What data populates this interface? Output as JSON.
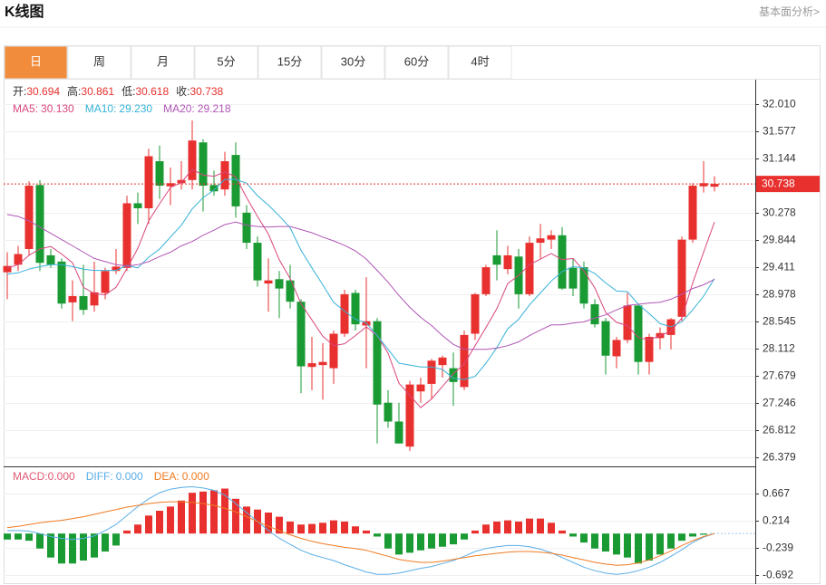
{
  "header": {
    "title": "K线图",
    "link": "基本面分析>"
  },
  "tabs": {
    "items": [
      "日",
      "周",
      "月",
      "5分",
      "15分",
      "30分",
      "60分",
      "4时"
    ],
    "active": 0,
    "active_color": "#f08c3c"
  },
  "chart_data": [
    {
      "type": "candlestick",
      "ohlc_labels": [
        "开:",
        "高:",
        "低:",
        "收:"
      ],
      "open": [
        29.33,
        29.45,
        29.7,
        30.72,
        29.6,
        29.5,
        28.85,
        28.95,
        28.8,
        29.0,
        29.35,
        29.4,
        30.43,
        30.35,
        31.1,
        30.7,
        30.75,
        30.8,
        31.4,
        30.72,
        30.65,
        31.2,
        30.28,
        29.8,
        29.15,
        29.22,
        29.2,
        28.86,
        27.82,
        27.85,
        27.8,
        28.35,
        29.0,
        28.48,
        28.55,
        27.25,
        26.95,
        26.55,
        27.43,
        27.55,
        27.85,
        27.8,
        27.5,
        28.35,
        28.98,
        29.6,
        29.38,
        29.58,
        28.98,
        29.8,
        29.85,
        29.92,
        29.4,
        29.41,
        28.82,
        28.55,
        27.99,
        28.25,
        28.8,
        27.9,
        28.28,
        28.33,
        28.62,
        29.85,
        30.7,
        30.694
      ],
      "high": [
        29.65,
        29.75,
        30.78,
        30.8,
        29.7,
        29.55,
        29.2,
        29.45,
        29.5,
        29.4,
        29.7,
        30.55,
        30.6,
        31.3,
        31.35,
        31.0,
        31.1,
        31.75,
        31.45,
        30.95,
        31.25,
        31.4,
        30.4,
        29.9,
        29.55,
        29.35,
        29.45,
        28.9,
        28.3,
        28.2,
        28.4,
        29.05,
        29.05,
        29.25,
        28.6,
        27.45,
        27.25,
        27.6,
        27.65,
        27.95,
        28.0,
        28.05,
        28.4,
        29.0,
        29.45,
        30.0,
        29.75,
        29.7,
        29.9,
        30.1,
        30.0,
        30.05,
        29.55,
        29.5,
        28.9,
        28.6,
        28.3,
        29.0,
        28.8,
        28.35,
        28.45,
        28.6,
        29.9,
        30.75,
        31.1,
        30.861
      ],
      "low": [
        28.9,
        29.35,
        29.6,
        29.35,
        29.4,
        28.75,
        28.55,
        28.65,
        28.7,
        28.9,
        29.3,
        29.35,
        30.1,
        30.1,
        30.5,
        30.4,
        30.65,
        30.65,
        30.3,
        30.55,
        30.55,
        30.2,
        29.7,
        29.1,
        28.7,
        28.6,
        28.75,
        27.4,
        27.45,
        27.3,
        27.55,
        28.3,
        28.4,
        27.8,
        26.6,
        26.85,
        26.6,
        26.48,
        27.25,
        27.3,
        27.65,
        27.2,
        27.45,
        28.25,
        28.95,
        29.2,
        29.3,
        28.75,
        28.95,
        29.55,
        29.7,
        29.05,
        28.95,
        28.75,
        28.45,
        27.7,
        27.8,
        28.2,
        27.7,
        27.7,
        28.1,
        28.1,
        28.55,
        29.8,
        30.6,
        30.618
      ],
      "close": [
        29.43,
        29.62,
        30.71,
        29.48,
        29.45,
        28.83,
        28.95,
        28.73,
        29.01,
        29.35,
        29.42,
        30.43,
        30.35,
        31.18,
        30.71,
        30.75,
        30.8,
        31.43,
        30.71,
        30.62,
        31.1,
        30.38,
        29.8,
        29.2,
        29.2,
        29.07,
        28.86,
        27.83,
        27.88,
        27.9,
        28.35,
        28.98,
        28.5,
        28.55,
        27.22,
        26.95,
        26.6,
        27.54,
        27.54,
        27.92,
        27.97,
        27.58,
        28.33,
        28.98,
        29.41,
        29.45,
        29.6,
        28.98,
        29.8,
        29.87,
        29.92,
        29.07,
        29.07,
        28.83,
        28.5,
        28.0,
        28.25,
        28.8,
        27.9,
        28.3,
        28.36,
        28.58,
        29.85,
        30.71,
        30.75,
        30.738
      ],
      "up_color": "#e8312f",
      "down_color": "#1a9a33",
      "ylim": [
        26.235,
        32.4
      ],
      "yticks": [
        {
          "value": 32.01,
          "label": "32.010"
        },
        31.577,
        31.144,
        30.278,
        29.844,
        29.411,
        28.978,
        28.545,
        28.112,
        27.679,
        27.246,
        26.812,
        26.379
      ],
      "grid": true,
      "series": [
        {
          "name": "MA5:",
          "color": "#d9457e",
          "value_label": "30.130",
          "values": [
            29.4,
            29.45,
            29.6,
            29.7,
            29.74,
            29.62,
            29.48,
            29.09,
            28.99,
            28.97,
            29.09,
            29.39,
            29.71,
            30.15,
            30.42,
            30.68,
            30.76,
            30.97,
            30.88,
            30.86,
            30.93,
            30.85,
            30.52,
            30.22,
            29.94,
            29.53,
            29.23,
            28.83,
            28.57,
            28.31,
            28.16,
            28.19,
            28.32,
            28.46,
            28.32,
            28.04,
            27.56,
            27.37,
            27.17,
            27.31,
            27.51,
            27.71,
            27.87,
            28.16,
            28.45,
            28.75,
            29.15,
            29.28,
            29.45,
            29.54,
            29.63,
            29.53,
            29.55,
            29.35,
            29.08,
            28.69,
            28.53,
            28.48,
            28.29,
            28.25,
            28.32,
            28.39,
            28.6,
            29.16,
            29.65,
            30.13
          ]
        },
        {
          "name": "MA10:",
          "color": "#36b2d8",
          "value_label": "29.230",
          "values": [
            29.3,
            29.32,
            29.38,
            29.42,
            29.45,
            29.45,
            29.42,
            29.38,
            29.36,
            29.36,
            29.36,
            29.44,
            29.4,
            29.57,
            29.7,
            29.89,
            30.08,
            30.34,
            30.52,
            30.64,
            30.81,
            30.81,
            30.75,
            30.55,
            30.4,
            30.23,
            30.04,
            29.68,
            29.4,
            29.13,
            28.85,
            28.71,
            28.58,
            28.52,
            28.32,
            28.1,
            27.88,
            27.85,
            27.82,
            27.82,
            27.78,
            27.64,
            27.62,
            27.67,
            27.88,
            28.13,
            28.43,
            28.58,
            28.81,
            29.0,
            29.19,
            29.34,
            29.42,
            29.4,
            29.31,
            29.16,
            29.03,
            29.02,
            28.82,
            28.67,
            28.51,
            28.46,
            28.54,
            28.73,
            28.95,
            29.23
          ]
        },
        {
          "name": "MA20:",
          "color": "#b055b5",
          "value_label": "29.218",
          "values": [
            30.25,
            30.22,
            30.15,
            30.05,
            29.95,
            29.85,
            29.75,
            29.65,
            29.55,
            29.5,
            29.45,
            29.43,
            29.45,
            29.5,
            29.58,
            29.65,
            29.75,
            29.82,
            29.92,
            30.0,
            30.09,
            30.13,
            30.08,
            30.06,
            30.05,
            30.06,
            30.06,
            30.01,
            29.96,
            29.89,
            29.83,
            29.76,
            29.67,
            29.54,
            29.36,
            29.17,
            28.96,
            28.77,
            28.61,
            28.48,
            28.32,
            28.18,
            28.1,
            28.1,
            28.1,
            28.12,
            28.16,
            28.22,
            28.32,
            28.41,
            28.49,
            28.49,
            28.52,
            28.54,
            28.6,
            28.65,
            28.73,
            28.8,
            28.82,
            28.84,
            28.85,
            28.9,
            28.98,
            29.07,
            29.13,
            29.218
          ]
        }
      ]
    },
    {
      "type": "macd",
      "name": "MACD:",
      "value_label": "0.000",
      "color": "#e05a72",
      "up_color": "#e8312f",
      "down_color": "#1a9a33",
      "values": [
        -0.1,
        -0.1,
        -0.12,
        -0.25,
        -0.4,
        -0.5,
        -0.5,
        -0.45,
        -0.4,
        -0.3,
        -0.2,
        0.05,
        0.15,
        0.3,
        0.38,
        0.45,
        0.55,
        0.68,
        0.7,
        0.72,
        0.75,
        0.58,
        0.45,
        0.4,
        0.35,
        0.28,
        0.2,
        0.15,
        0.16,
        0.18,
        0.22,
        0.2,
        0.12,
        0.05,
        -0.05,
        -0.25,
        -0.35,
        -0.32,
        -0.28,
        -0.25,
        -0.22,
        -0.18,
        -0.1,
        0.05,
        0.15,
        0.2,
        0.22,
        0.2,
        0.25,
        0.25,
        0.18,
        0.05,
        -0.05,
        -0.15,
        -0.25,
        -0.3,
        -0.35,
        -0.4,
        -0.5,
        -0.45,
        -0.35,
        -0.25,
        -0.12,
        -0.05,
        -0.02,
        0
      ],
      "ylim": [
        -0.843,
        1.09
      ],
      "yticks": [
        0.667,
        0.214,
        -0.239,
        -0.692
      ],
      "series": [
        {
          "name": "DIFF:",
          "color": "#5aaee8",
          "value_label": "0.000",
          "values": [
            0.05,
            0.05,
            0.04,
            0.0,
            -0.05,
            -0.08,
            -0.1,
            -0.08,
            -0.04,
            0.05,
            0.15,
            0.3,
            0.45,
            0.58,
            0.68,
            0.74,
            0.77,
            0.78,
            0.76,
            0.72,
            0.64,
            0.5,
            0.35,
            0.2,
            0.05,
            -0.08,
            -0.18,
            -0.28,
            -0.35,
            -0.4,
            -0.45,
            -0.52,
            -0.58,
            -0.64,
            -0.68,
            -0.68,
            -0.66,
            -0.62,
            -0.58,
            -0.55,
            -0.5,
            -0.45,
            -0.38,
            -0.3,
            -0.25,
            -0.22,
            -0.2,
            -0.2,
            -0.22,
            -0.26,
            -0.32,
            -0.4,
            -0.48,
            -0.56,
            -0.62,
            -0.66,
            -0.68,
            -0.66,
            -0.62,
            -0.56,
            -0.48,
            -0.38,
            -0.27,
            -0.15,
            -0.06,
            0
          ]
        },
        {
          "name": "DEA:",
          "color": "#f07b22",
          "value_label": "0.000",
          "values": [
            0.1,
            0.12,
            0.15,
            0.18,
            0.2,
            0.22,
            0.25,
            0.28,
            0.32,
            0.36,
            0.4,
            0.44,
            0.47,
            0.5,
            0.52,
            0.53,
            0.53,
            0.52,
            0.5,
            0.47,
            0.42,
            0.36,
            0.28,
            0.2,
            0.12,
            0.05,
            -0.02,
            -0.08,
            -0.13,
            -0.17,
            -0.2,
            -0.23,
            -0.25,
            -0.28,
            -0.33,
            -0.38,
            -0.43,
            -0.46,
            -0.48,
            -0.48,
            -0.46,
            -0.43,
            -0.4,
            -0.37,
            -0.35,
            -0.33,
            -0.31,
            -0.3,
            -0.3,
            -0.31,
            -0.33,
            -0.36,
            -0.4,
            -0.44,
            -0.48,
            -0.51,
            -0.53,
            -0.52,
            -0.49,
            -0.44,
            -0.37,
            -0.29,
            -0.2,
            -0.12,
            -0.05,
            0
          ]
        }
      ]
    }
  ]
}
